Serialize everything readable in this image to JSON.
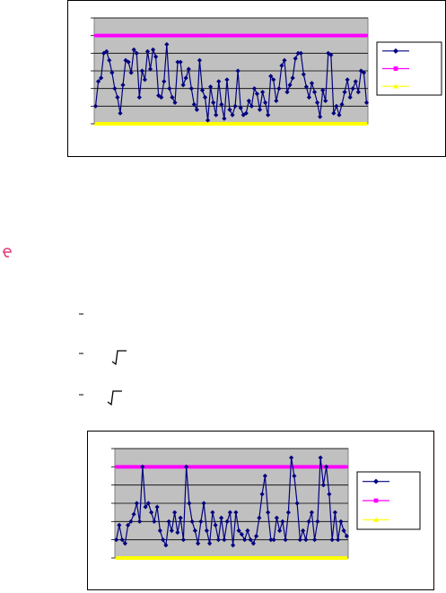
{
  "chart_data": [
    {
      "type": "line",
      "ylim": [
        0,
        6
      ],
      "yticks": [
        0,
        1,
        2,
        3,
        4,
        5,
        6
      ],
      "grid": true,
      "legend": "right",
      "plot_background": "#c0c0c0",
      "series": [
        {
          "color": "#000080",
          "marker": "diamond",
          "values": [
            1.0,
            2.4,
            2.6,
            4.0,
            4.1,
            3.6,
            2.9,
            2.0,
            1.5,
            0.6,
            2.2,
            3.6,
            3.5,
            2.9,
            4.2,
            4.0,
            1.5,
            3.0,
            2.5,
            4.1,
            3.1,
            4.2,
            3.8,
            1.6,
            1.5,
            2.4,
            4.5,
            2.0,
            1.5,
            1.2,
            3.5,
            3.5,
            2.2,
            2.6,
            3.1,
            2.0,
            1.1,
            0.8,
            3.6,
            1.9,
            1.5,
            0.2,
            2.1,
            1.2,
            0.5,
            2.4,
            1.1,
            0.3,
            2.5,
            0.8,
            0.5,
            1.0,
            3.0,
            0.9,
            0.5,
            0.6,
            1.3,
            1.0,
            2.0,
            1.7,
            0.8,
            1.8,
            1.2,
            0.5,
            2.7,
            2.5,
            1.3,
            2.0,
            3.3,
            3.6,
            1.8,
            2.2,
            2.6,
            3.7,
            4.0,
            4.0,
            2.8,
            2.1,
            1.5,
            2.3,
            1.8,
            1.2,
            0.4,
            1.9,
            1.3,
            4.0,
            3.9,
            0.6,
            1.0,
            0.5,
            1.1,
            1.8,
            2.5,
            1.5,
            2.0,
            2.4,
            1.8,
            3.0,
            2.9,
            1.2
          ]
        },
        {
          "color": "#ff00ff",
          "marker": "square",
          "values": [
            5,
            5,
            5,
            5,
            5,
            5,
            5,
            5,
            5,
            5,
            5,
            5,
            5,
            5,
            5,
            5,
            5,
            5,
            5,
            5,
            5,
            5,
            5,
            5,
            5,
            5,
            5,
            5,
            5,
            5,
            5,
            5,
            5,
            5,
            5,
            5,
            5,
            5,
            5,
            5,
            5,
            5,
            5,
            5,
            5,
            5,
            5,
            5,
            5,
            5,
            5,
            5,
            5,
            5,
            5,
            5,
            5,
            5,
            5,
            5,
            5,
            5,
            5,
            5,
            5,
            5,
            5,
            5,
            5,
            5,
            5,
            5,
            5,
            5,
            5,
            5,
            5,
            5,
            5,
            5,
            5,
            5,
            5,
            5,
            5,
            5,
            5,
            5,
            5,
            5,
            5,
            5,
            5,
            5,
            5,
            5,
            5,
            5,
            5,
            5
          ]
        },
        {
          "color": "#ffff00",
          "marker": "triangle",
          "values": [
            0,
            0,
            0,
            0,
            0,
            0,
            0,
            0,
            0,
            0,
            0,
            0,
            0,
            0,
            0,
            0,
            0,
            0,
            0,
            0,
            0,
            0,
            0,
            0,
            0,
            0,
            0,
            0,
            0,
            0,
            0,
            0,
            0,
            0,
            0,
            0,
            0,
            0,
            0,
            0,
            0,
            0,
            0,
            0,
            0,
            0,
            0,
            0,
            0,
            0,
            0,
            0,
            0,
            0,
            0,
            0,
            0,
            0,
            0,
            0,
            0,
            0,
            0,
            0,
            0,
            0,
            0,
            0,
            0,
            0,
            0,
            0,
            0,
            0,
            0,
            0,
            0,
            0,
            0,
            0,
            0,
            0,
            0,
            0,
            0,
            0,
            0,
            0,
            0,
            0,
            0,
            0,
            0,
            0,
            0,
            0,
            0,
            0,
            0,
            0
          ]
        }
      ]
    },
    {
      "type": "line",
      "ylim": [
        0,
        6
      ],
      "yticks": [
        0,
        1,
        2,
        3,
        4,
        5,
        6
      ],
      "grid": true,
      "legend": "right",
      "plot_background": "#c0c0c0",
      "series": [
        {
          "color": "#000080",
          "marker": "diamond",
          "values": [
            1.0,
            1.8,
            1.0,
            0.8,
            1.8,
            2.0,
            2.4,
            3.0,
            2.0,
            5.0,
            2.8,
            3.0,
            2.5,
            2.0,
            2.8,
            1.5,
            1.0,
            0.7,
            2.0,
            1.5,
            2.5,
            1.4,
            2.2,
            1.0,
            5.0,
            3.0,
            2.0,
            1.5,
            0.8,
            2.0,
            3.0,
            1.5,
            0.8,
            2.5,
            1.8,
            1.0,
            2.2,
            1.0,
            2.0,
            2.5,
            0.7,
            2.5,
            1.5,
            1.3,
            1.0,
            1.5,
            1.0,
            0.8,
            1.2,
            2.2,
            3.5,
            4.5,
            2.5,
            1.0,
            1.0,
            2.2,
            1.5,
            2.0,
            1.0,
            2.5,
            5.5,
            4.5,
            3.0,
            1.0,
            1.5,
            1.0,
            2.0,
            2.5,
            1.0,
            2.0,
            5.5,
            4.0,
            5.0,
            3.5,
            1.0,
            2.5,
            1.0,
            2.0,
            1.5,
            1.2
          ]
        },
        {
          "color": "#ff00ff",
          "marker": "square",
          "values": [
            5,
            5,
            5,
            5,
            5,
            5,
            5,
            5,
            5,
            5,
            5,
            5,
            5,
            5,
            5,
            5,
            5,
            5,
            5,
            5,
            5,
            5,
            5,
            5,
            5,
            5,
            5,
            5,
            5,
            5,
            5,
            5,
            5,
            5,
            5,
            5,
            5,
            5,
            5,
            5,
            5,
            5,
            5,
            5,
            5,
            5,
            5,
            5,
            5,
            5,
            5,
            5,
            5,
            5,
            5,
            5,
            5,
            5,
            5,
            5,
            5,
            5,
            5,
            5,
            5,
            5,
            5,
            5,
            5,
            5,
            5,
            5,
            5,
            5,
            5,
            5,
            5,
            5,
            5,
            5
          ]
        },
        {
          "color": "#ffff00",
          "marker": "triangle",
          "values": [
            0,
            0,
            0,
            0,
            0,
            0,
            0,
            0,
            0,
            0,
            0,
            0,
            0,
            0,
            0,
            0,
            0,
            0,
            0,
            0,
            0,
            0,
            0,
            0,
            0,
            0,
            0,
            0,
            0,
            0,
            0,
            0,
            0,
            0,
            0,
            0,
            0,
            0,
            0,
            0,
            0,
            0,
            0,
            0,
            0,
            0,
            0,
            0,
            0,
            0,
            0,
            0,
            0,
            0,
            0,
            0,
            0,
            0,
            0,
            0,
            0,
            0,
            0,
            0,
            0,
            0,
            0,
            0,
            0,
            0,
            0,
            0,
            0,
            0,
            0,
            0,
            0,
            0,
            0,
            0
          ]
        }
      ]
    }
  ]
}
